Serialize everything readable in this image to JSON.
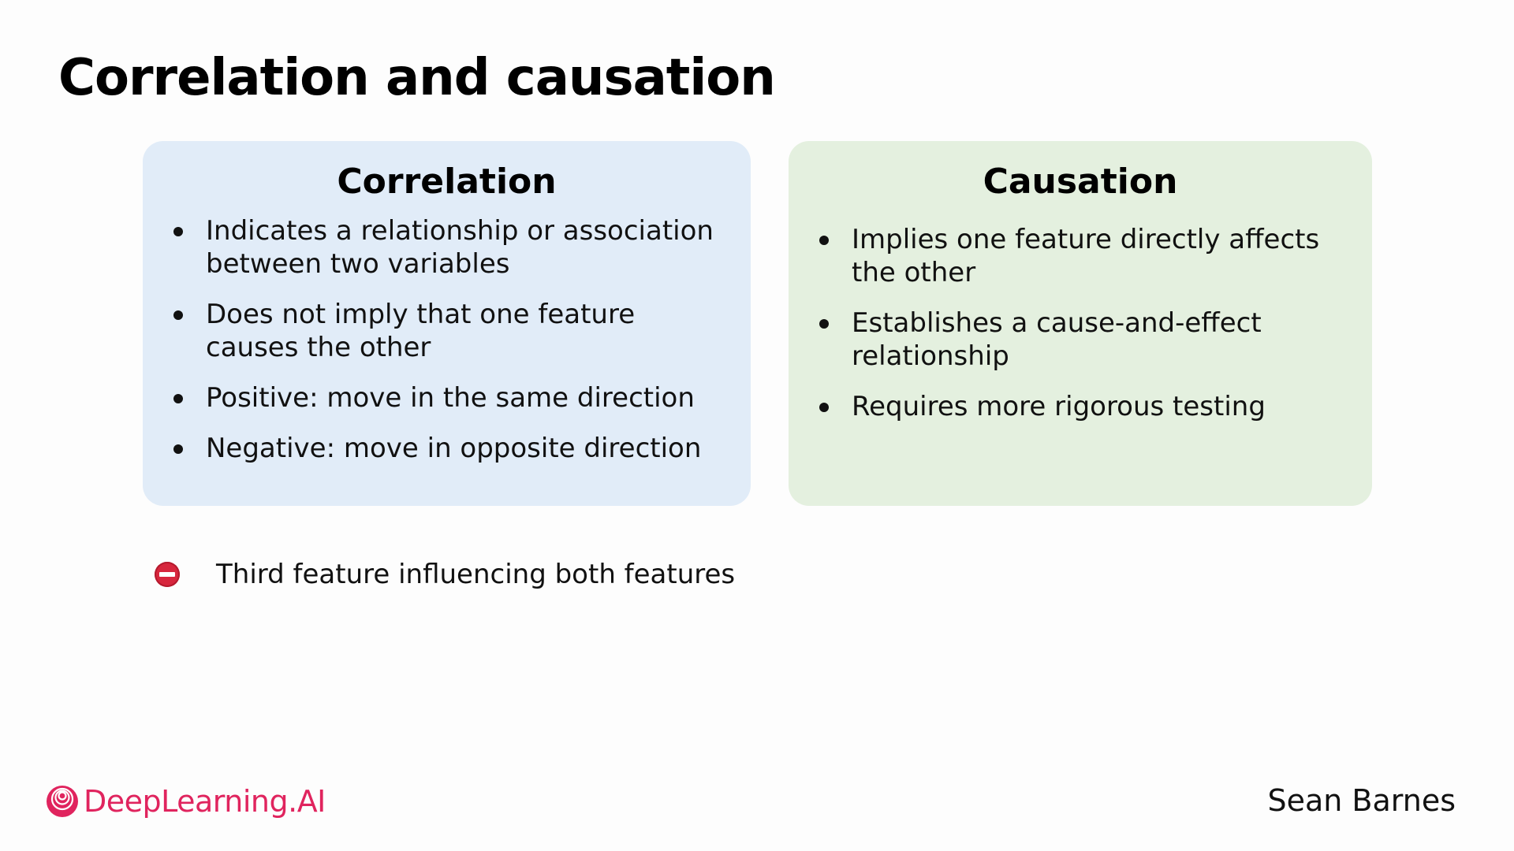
{
  "slide": {
    "title": "Correlation and causation"
  },
  "correlation": {
    "heading": "Correlation",
    "bullets": [
      "Indicates a relationship or association between two variables",
      "Does not imply that one feature causes the other",
      "Positive: move in the same direction",
      "Negative: move in opposite direction"
    ]
  },
  "causation": {
    "heading": "Causation",
    "bullets": [
      "Implies one feature directly affects the other",
      "Establishes a cause-and-effect relationship",
      "Requires more rigorous testing"
    ]
  },
  "note": {
    "icon": "no-entry-icon",
    "text": "Third feature influencing both features"
  },
  "footer": {
    "logo_text": "DeepLearning.AI",
    "presenter": "Sean Barnes"
  },
  "colors": {
    "correlation_bg": "#e1ecf8",
    "causation_bg": "#e4f0df",
    "brand": "#e0245e",
    "no_entry": "#d7263d"
  }
}
